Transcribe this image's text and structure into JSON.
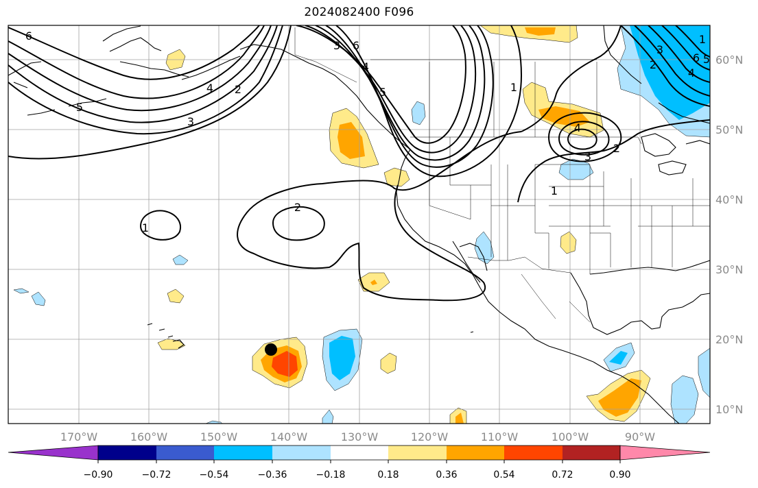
{
  "title": "2024082400 F096",
  "lon_labels": [
    "170°W",
    "160°W",
    "150°W",
    "140°W",
    "130°W",
    "120°W",
    "110°W",
    "100°W",
    "90°W"
  ],
  "lat_labels": [
    "60°N",
    "50°N",
    "40°N",
    "30°N",
    "20°N",
    "10°N"
  ],
  "colorbar": {
    "colors": [
      "#9932cc",
      "#00008b",
      "#3a5bcf",
      "#00bfff",
      "#aee3ff",
      "#ffffff",
      "#ffea8a",
      "#ffa500",
      "#ff4500",
      "#b22222",
      "#ff88aa"
    ],
    "tick_labels": [
      "−0.90",
      "−0.72",
      "−0.54",
      "−0.36",
      "−0.18",
      "0.18",
      "0.36",
      "0.54",
      "0.72",
      "0.90"
    ]
  },
  "contour_labels": [
    "6",
    "5",
    "4",
    "3",
    "2",
    "1",
    "2",
    "1",
    "3",
    "4",
    "5",
    "6",
    "1",
    "2",
    "3",
    "4",
    "1",
    "2",
    "3",
    "4",
    "5",
    "6"
  ],
  "colors": {
    "grid": "#a0a0a0",
    "land": "#000000",
    "contour": "#000000",
    "positive_low": "#ffea8a",
    "positive_mid": "#ffa500",
    "positive_high": "#ff4500",
    "negative_low": "#aee3ff",
    "negative_mid": "#00bfff"
  },
  "marker": "storm-position-marker"
}
